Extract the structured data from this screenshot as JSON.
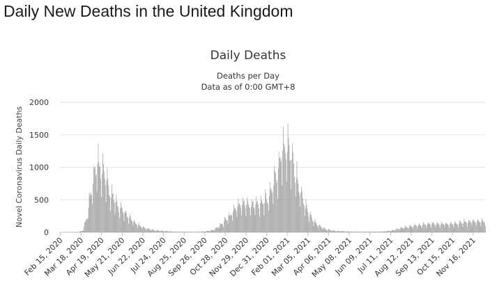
{
  "page": {
    "title": "Daily New Deaths in the United Kingdom"
  },
  "chart_data": {
    "type": "bar",
    "title": "Daily Deaths",
    "subtitle_lines": [
      "Deaths per Day",
      "Data as of 0:00 GMT+8"
    ],
    "xlabel": "",
    "ylabel": "Novel Coronavirus Daily Deaths",
    "ylim": [
      0,
      2000
    ],
    "yticks": [
      0,
      500,
      1000,
      1500,
      2000
    ],
    "grid": true,
    "legend": "none",
    "bar_color": "#9a9a9a",
    "date_start": "2020-02-15",
    "date_end": "2021-12-05",
    "x_tick_labels": [
      "Feb 15, 2020",
      "Mar 18, 2020",
      "Apr 19, 2020",
      "May 21, 2020",
      "Jun 22, 2020",
      "Jul 24, 2020",
      "Aug 25, 2020",
      "Sep 26, 2020",
      "Oct 28, 2020",
      "Nov 29, 2020",
      "Dec 31, 2020",
      "Feb 01, 2021",
      "Mar 05, 2021",
      "Apr 06, 2021",
      "May 08, 2021",
      "Jun 09, 2021",
      "Jul 11, 2021",
      "Aug 12, 2021",
      "Sep 13, 2021",
      "Oct 15, 2021",
      "Nov 16, 2021"
    ],
    "series": [
      {
        "weekly_values": [
          0,
          0,
          0,
          1,
          3,
          25,
          250,
          700,
          1000,
          1000,
          800,
          600,
          480,
          370,
          300,
          240,
          170,
          120,
          85,
          60,
          42,
          32,
          24,
          20,
          15,
          11,
          9,
          7,
          7,
          7,
          6,
          9,
          13,
          22,
          35,
          85,
          140,
          210,
          280,
          380,
          420,
          430,
          420,
          420,
          430,
          450,
          520,
          650,
          880,
          1200,
          1300,
          1200,
          900,
          650,
          430,
          280,
          180,
          110,
          70,
          45,
          30,
          22,
          18,
          15,
          12,
          10,
          9,
          9,
          9,
          9,
          9,
          10,
          15,
          22,
          35,
          55,
          70,
          80,
          90,
          100,
          110,
          115,
          125,
          125,
          125,
          120,
          120,
          125,
          130,
          140,
          155,
          160,
          165,
          160,
          155,
          150,
          145,
          140,
          130
        ]
      }
    ]
  }
}
